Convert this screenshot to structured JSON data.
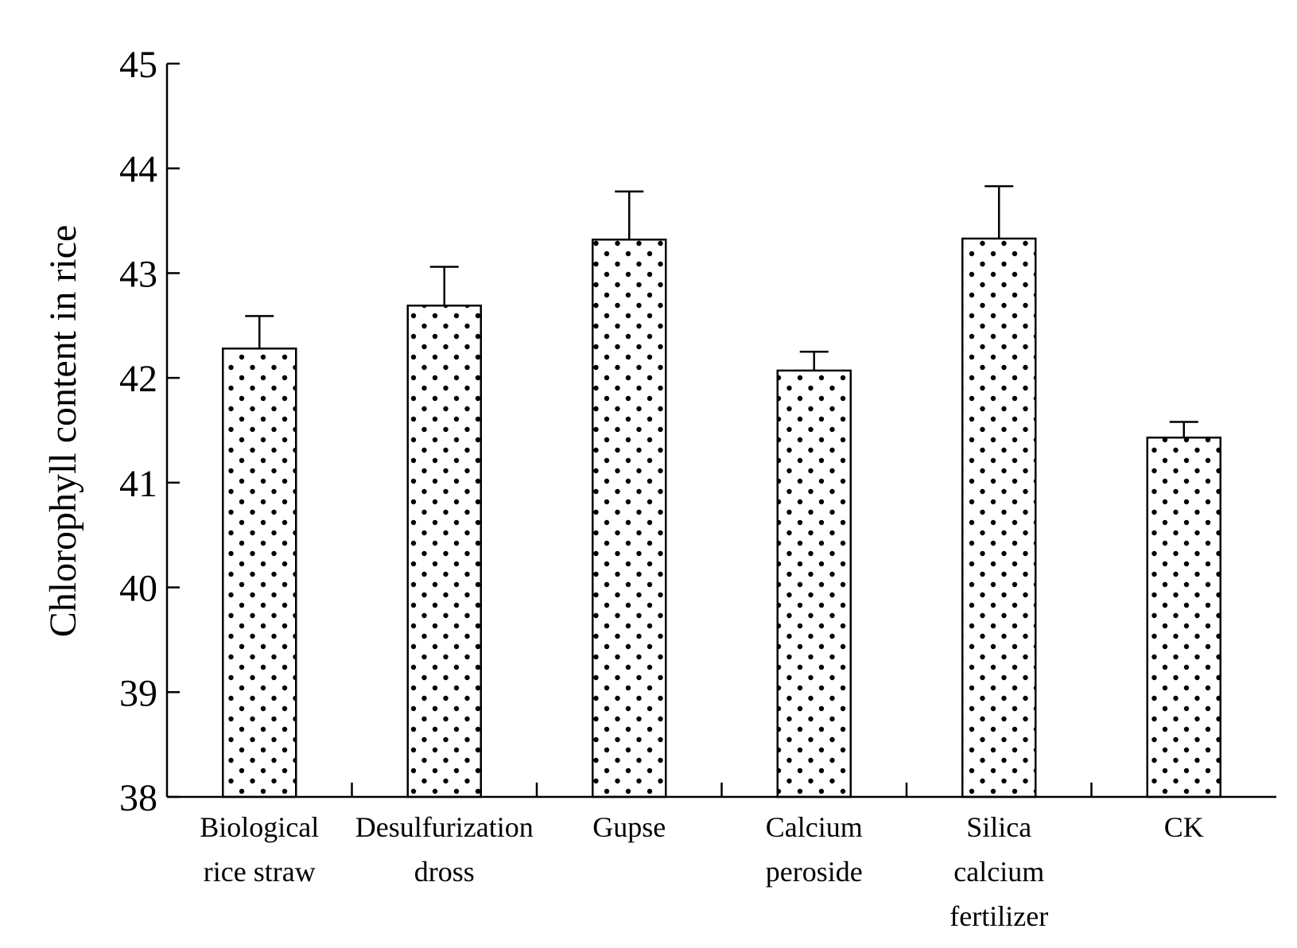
{
  "chart_data": {
    "type": "bar",
    "title": "",
    "xlabel": "",
    "ylabel": "Chlorophyll content in rice",
    "ylim": [
      38,
      45
    ],
    "yticks": [
      "38",
      "39",
      "40",
      "41",
      "42",
      "43",
      "44",
      "45"
    ],
    "categories": [
      [
        "Biological",
        "rice straw"
      ],
      [
        "Desulfurization",
        "dross"
      ],
      [
        "Gupse"
      ],
      [
        "Calcium",
        "peroside"
      ],
      [
        "Silica",
        "calcium",
        "fertilizer"
      ],
      [
        "CK"
      ]
    ],
    "values": [
      42.28,
      42.69,
      43.32,
      42.07,
      43.33,
      41.43
    ],
    "errors": [
      0.31,
      0.37,
      0.46,
      0.18,
      0.5,
      0.15
    ],
    "bar_fill": "dotted",
    "bar_color": "#000000",
    "background": "#ffffff",
    "grid": false,
    "legend": "none"
  }
}
